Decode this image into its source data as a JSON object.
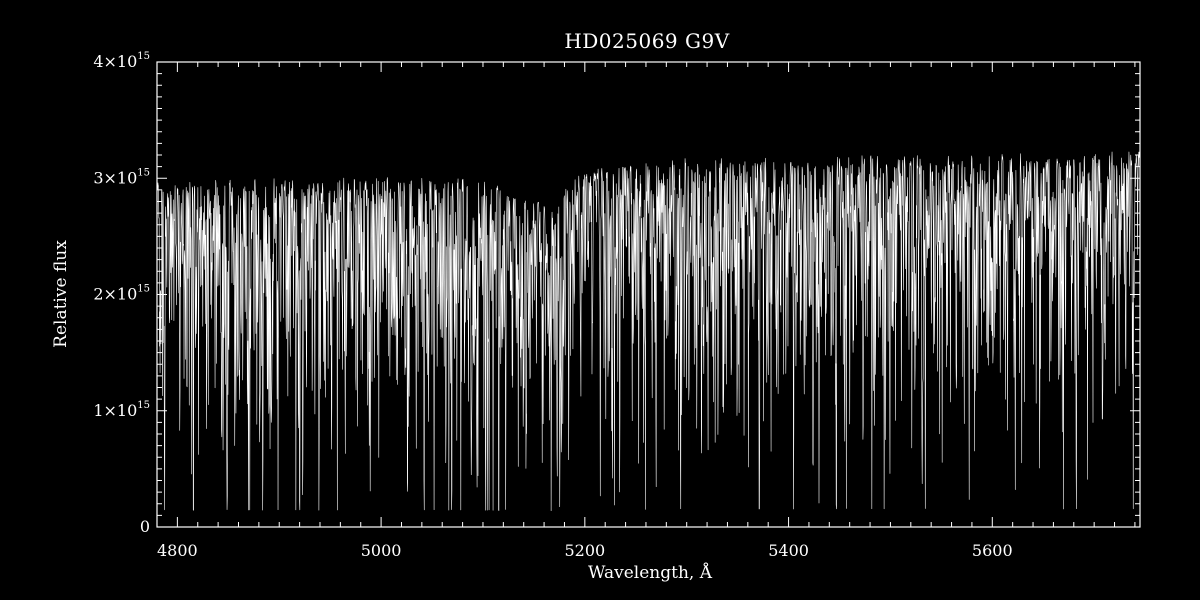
{
  "chart_data": {
    "type": "line",
    "title": "HD025069   G9V",
    "xlabel": "Wavelength, Å",
    "ylabel": "Relative flux",
    "xlim": [
      4780,
      5745
    ],
    "ylim": [
      0,
      4000000000000000.0
    ],
    "x_ticks": [
      4800,
      5000,
      5200,
      5400,
      5600
    ],
    "x_tick_labels": [
      "4800",
      "5000",
      "5200",
      "5400",
      "5600"
    ],
    "y_ticks": [
      {
        "value": 0,
        "mantissa": "0",
        "times": "",
        "base": "",
        "exponent": ""
      },
      {
        "value": 1000000000000000.0,
        "mantissa": "1",
        "times": "×",
        "base": "10",
        "exponent": "15"
      },
      {
        "value": 2000000000000000.0,
        "mantissa": "2",
        "times": "×",
        "base": "10",
        "exponent": "15"
      },
      {
        "value": 3000000000000000.0,
        "mantissa": "3",
        "times": "×",
        "base": "10",
        "exponent": "15"
      },
      {
        "value": 4000000000000000.0,
        "mantissa": "4",
        "times": "×",
        "base": "10",
        "exponent": "15"
      }
    ],
    "grid": false,
    "series": [
      {
        "wavelength_range": [
          4780,
          5745
        ],
        "continuum": [
          [
            4780,
            2950000000000000.0
          ],
          [
            4900,
            2970000000000000.0
          ],
          [
            5000,
            2980000000000000.0
          ],
          [
            5100,
            2970000000000000.0
          ],
          [
            5160,
            2750000000000000.0
          ],
          [
            5200,
            3050000000000000.0
          ],
          [
            5300,
            3150000000000000.0
          ],
          [
            5500,
            3170000000000000.0
          ],
          [
            5745,
            3200000000000000.0
          ]
        ],
        "absorption_lines": [
          {
            "x": 4861,
            "depth": 0.78
          },
          {
            "x": 4891,
            "depth": 0.72
          },
          {
            "x": 4920,
            "depth": 0.7
          },
          {
            "x": 4957,
            "depth": 0.82
          },
          {
            "x": 5015,
            "depth": 0.62
          },
          {
            "x": 5050,
            "depth": 0.6
          },
          {
            "x": 5110,
            "depth": 0.66
          },
          {
            "x": 5167,
            "depth": 0.88
          },
          {
            "x": 5173,
            "depth": 0.87
          },
          {
            "x": 5184,
            "depth": 0.89
          },
          {
            "x": 5227,
            "depth": 0.7
          },
          {
            "x": 5270,
            "depth": 0.83
          },
          {
            "x": 5328,
            "depth": 0.83
          },
          {
            "x": 5371,
            "depth": 0.77
          },
          {
            "x": 5405,
            "depth": 0.74
          },
          {
            "x": 5430,
            "depth": 0.78
          },
          {
            "x": 5447,
            "depth": 0.76
          },
          {
            "x": 5455,
            "depth": 0.74
          },
          {
            "x": 5615,
            "depth": 0.64
          },
          {
            "x": 5708,
            "depth": 0.6
          }
        ]
      }
    ]
  }
}
